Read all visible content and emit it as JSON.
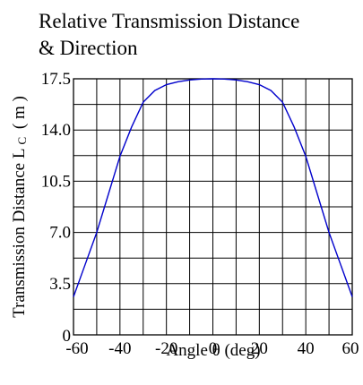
{
  "chart_data": {
    "type": "line",
    "title_lines": [
      "Relative Transmission Distance",
      "& Direction"
    ],
    "xlabel": "Angle  θ  (deg)",
    "ylabel": {
      "main": "Transmission Distance L",
      "sub": "C",
      "unit": "( m )"
    },
    "xlim": [
      -60,
      60
    ],
    "ylim": [
      0,
      17.5
    ],
    "x_ticks": [
      -60,
      -40,
      -20,
      0,
      20,
      40,
      60
    ],
    "y_ticks": [
      "0",
      "3.5",
      "7.0",
      "10.5",
      "14.0",
      "17.5"
    ],
    "x_grid_step": 10,
    "y_grid_step": 1.75,
    "grid": true,
    "series": [
      {
        "color": "#0000cc",
        "x": [
          -60,
          -55,
          -50,
          -45,
          -40,
          -35,
          -30,
          -25,
          -20,
          -15,
          -10,
          -5,
          0,
          5,
          10,
          15,
          20,
          25,
          30,
          35,
          40,
          45,
          50,
          55,
          60
        ],
        "y": [
          2.6,
          4.8,
          7.0,
          9.6,
          12.2,
          14.2,
          15.9,
          16.7,
          17.1,
          17.3,
          17.42,
          17.48,
          17.5,
          17.48,
          17.42,
          17.3,
          17.1,
          16.7,
          15.9,
          14.2,
          12.2,
          9.6,
          7.0,
          4.8,
          2.6
        ]
      }
    ]
  }
}
